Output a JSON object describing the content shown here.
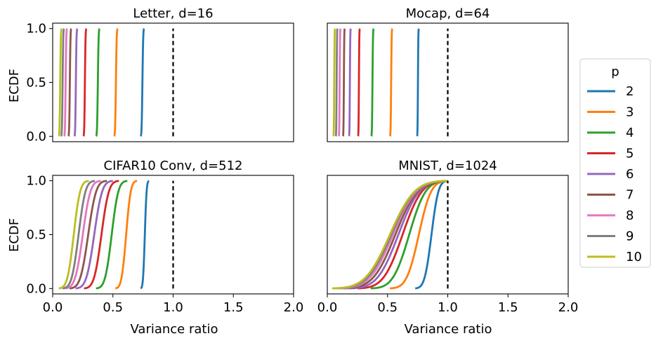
{
  "chart_data": {
    "type": "line",
    "xlabel": "Variance ratio",
    "ylabel": "ECDF",
    "xlim": [
      0,
      2.0
    ],
    "ylim": [
      0,
      1.0
    ],
    "x_ticks": [
      0.0,
      0.5,
      1.0,
      1.5,
      2.0
    ],
    "x_tick_labels": [
      "0.0",
      "0.5",
      "1.0",
      "1.5",
      "2.0"
    ],
    "y_ticks": [
      0.0,
      0.5,
      1.0
    ],
    "y_tick_labels": [
      "0.0",
      "0.5",
      "1.0"
    ],
    "reference_line_x": 1.0,
    "legend": {
      "title": "p",
      "placement": "right",
      "entries": [
        {
          "label": "2",
          "color": "#1f77b4"
        },
        {
          "label": "3",
          "color": "#ff7f0e"
        },
        {
          "label": "4",
          "color": "#2ca02c"
        },
        {
          "label": "5",
          "color": "#d62728"
        },
        {
          "label": "6",
          "color": "#9467bd"
        },
        {
          "label": "7",
          "color": "#8c564b"
        },
        {
          "label": "8",
          "color": "#e377c2"
        },
        {
          "label": "9",
          "color": "#7f7f7f"
        },
        {
          "label": "10",
          "color": "#bcbd22"
        }
      ]
    },
    "panels": [
      {
        "title": "Letter, d=16",
        "series": [
          {
            "name": "2",
            "min": 0.73,
            "max": 0.76
          },
          {
            "name": "3",
            "min": 0.51,
            "max": 0.54
          },
          {
            "name": "4",
            "min": 0.36,
            "max": 0.39
          },
          {
            "name": "5",
            "min": 0.255,
            "max": 0.28
          },
          {
            "name": "6",
            "min": 0.18,
            "max": 0.205
          },
          {
            "name": "7",
            "min": 0.13,
            "max": 0.155
          },
          {
            "name": "8",
            "min": 0.095,
            "max": 0.12
          },
          {
            "name": "9",
            "min": 0.07,
            "max": 0.095
          },
          {
            "name": "10",
            "min": 0.05,
            "max": 0.075
          }
        ]
      },
      {
        "title": "Mocap, d=64",
        "series": [
          {
            "name": "2",
            "min": 0.745,
            "max": 0.76
          },
          {
            "name": "3",
            "min": 0.52,
            "max": 0.54
          },
          {
            "name": "4",
            "min": 0.365,
            "max": 0.385
          },
          {
            "name": "5",
            "min": 0.255,
            "max": 0.27
          },
          {
            "name": "6",
            "min": 0.18,
            "max": 0.195
          },
          {
            "name": "7",
            "min": 0.13,
            "max": 0.145
          },
          {
            "name": "8",
            "min": 0.095,
            "max": 0.11
          },
          {
            "name": "9",
            "min": 0.07,
            "max": 0.085
          },
          {
            "name": "10",
            "min": 0.05,
            "max": 0.065
          }
        ]
      },
      {
        "title": "CIFAR10 Conv, d=512",
        "series": [
          {
            "name": "2",
            "min": 0.73,
            "max": 0.8
          },
          {
            "name": "3",
            "min": 0.52,
            "max": 0.7
          },
          {
            "name": "4",
            "min": 0.36,
            "max": 0.62
          },
          {
            "name": "5",
            "min": 0.26,
            "max": 0.55
          },
          {
            "name": "6",
            "min": 0.19,
            "max": 0.5
          },
          {
            "name": "7",
            "min": 0.14,
            "max": 0.45
          },
          {
            "name": "8",
            "min": 0.1,
            "max": 0.4
          },
          {
            "name": "9",
            "min": 0.08,
            "max": 0.35
          },
          {
            "name": "10",
            "min": 0.05,
            "max": 0.3
          }
        ]
      },
      {
        "title": "MNIST, d=1024",
        "series": [
          {
            "name": "2",
            "min": 0.73,
            "max": 1.0
          },
          {
            "name": "3",
            "min": 0.52,
            "max": 1.0
          },
          {
            "name": "4",
            "min": 0.36,
            "max": 1.0
          },
          {
            "name": "5",
            "min": 0.25,
            "max": 1.0
          },
          {
            "name": "6",
            "min": 0.18,
            "max": 1.0
          },
          {
            "name": "7",
            "min": 0.13,
            "max": 1.0
          },
          {
            "name": "8",
            "min": 0.09,
            "max": 1.0
          },
          {
            "name": "9",
            "min": 0.06,
            "max": 1.0
          },
          {
            "name": "10",
            "min": 0.04,
            "max": 1.0
          }
        ]
      }
    ]
  }
}
